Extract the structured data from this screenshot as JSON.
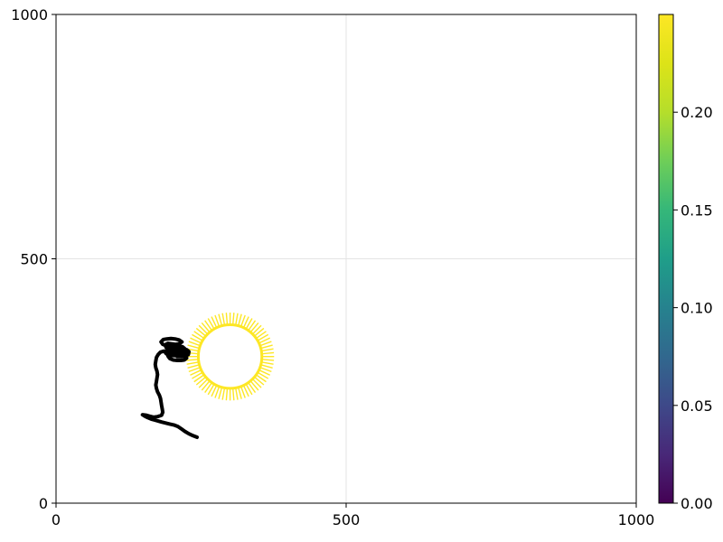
{
  "chart_data": {
    "type": "line",
    "title": "",
    "xlabel": "",
    "ylabel": "",
    "xlim": [
      0,
      1000
    ],
    "ylim": [
      0,
      1000
    ],
    "x_ticks": [
      "0",
      "500",
      "1000"
    ],
    "y_ticks": [
      "0",
      "500",
      "1000"
    ],
    "x_tick_values": [
      0,
      500,
      1000
    ],
    "y_tick_values": [
      0,
      500,
      1000
    ],
    "grid": true,
    "series": [
      {
        "kind": "trajectory",
        "color": "#000000",
        "points": [
          [
            243,
            135
          ],
          [
            236,
            138
          ],
          [
            229,
            142
          ],
          [
            222,
            147
          ],
          [
            216,
            152
          ],
          [
            210,
            157
          ],
          [
            203,
            160
          ],
          [
            196,
            162
          ],
          [
            189,
            164
          ],
          [
            182,
            166
          ],
          [
            176,
            168
          ],
          [
            170,
            170
          ],
          [
            164,
            172
          ],
          [
            158,
            175
          ],
          [
            153,
            178
          ],
          [
            149,
            181
          ],
          [
            155,
            180
          ],
          [
            161,
            178
          ],
          [
            168,
            176
          ],
          [
            175,
            177
          ],
          [
            182,
            180
          ],
          [
            184,
            186
          ],
          [
            183,
            193
          ],
          [
            182,
            200
          ],
          [
            181,
            207
          ],
          [
            180,
            214
          ],
          [
            178,
            221
          ],
          [
            175,
            228
          ],
          [
            173,
            235
          ],
          [
            172,
            242
          ],
          [
            173,
            249
          ],
          [
            174,
            256
          ],
          [
            175,
            263
          ],
          [
            174,
            270
          ],
          [
            172,
            277
          ],
          [
            171,
            284
          ],
          [
            172,
            291
          ],
          [
            173,
            298
          ],
          [
            176,
            304
          ],
          [
            180,
            309
          ],
          [
            186,
            311
          ],
          [
            192,
            310
          ],
          [
            198,
            309
          ],
          [
            205,
            308
          ],
          [
            211,
            308
          ],
          [
            216,
            310
          ],
          [
            214,
            315
          ],
          [
            208,
            317
          ],
          [
            201,
            317
          ],
          [
            195,
            316
          ],
          [
            190,
            318
          ],
          [
            188,
            324
          ],
          [
            193,
            327
          ],
          [
            199,
            326
          ],
          [
            206,
            325
          ],
          [
            212,
            326
          ],
          [
            217,
            330
          ],
          [
            212,
            334
          ],
          [
            205,
            336
          ],
          [
            198,
            337
          ],
          [
            191,
            336
          ],
          [
            185,
            335
          ],
          [
            181,
            330
          ],
          [
            184,
            325
          ],
          [
            190,
            322
          ],
          [
            196,
            321
          ],
          [
            203,
            321
          ],
          [
            210,
            321
          ],
          [
            215,
            319
          ],
          [
            214,
            314
          ],
          [
            209,
            313
          ],
          [
            203,
            313
          ],
          [
            197,
            313
          ],
          [
            191,
            312
          ],
          [
            189,
            307
          ],
          [
            193,
            303
          ],
          [
            200,
            302
          ],
          [
            207,
            302
          ],
          [
            214,
            302
          ],
          [
            220,
            303
          ],
          [
            224,
            307
          ],
          [
            221,
            312
          ],
          [
            215,
            313
          ],
          [
            209,
            313
          ],
          [
            204,
            315
          ],
          [
            206,
            320
          ],
          [
            212,
            322
          ],
          [
            218,
            320
          ],
          [
            222,
            316
          ],
          [
            223,
            310
          ],
          [
            220,
            305
          ],
          [
            214,
            302
          ],
          [
            208,
            302
          ],
          [
            202,
            303
          ],
          [
            197,
            304
          ],
          [
            193,
            301
          ],
          [
            196,
            296
          ],
          [
            202,
            293
          ],
          [
            209,
            292
          ],
          [
            215,
            292
          ],
          [
            221,
            293
          ],
          [
            225,
            297
          ],
          [
            222,
            302
          ],
          [
            216,
            304
          ],
          [
            210,
            305
          ],
          [
            205,
            308
          ],
          [
            206,
            313
          ],
          [
            212,
            315
          ],
          [
            219,
            315
          ],
          [
            225,
            314
          ],
          [
            229,
            310
          ],
          [
            228,
            304
          ],
          [
            222,
            301
          ],
          [
            215,
            300
          ],
          [
            209,
            300
          ]
        ]
      }
    ],
    "vector_field": {
      "center": [
        300,
        300
      ],
      "radius_inner": 65,
      "radius_outer": 90,
      "count": 72,
      "value": 0.25,
      "color": "#fde725"
    },
    "colorbar": {
      "colormap": "viridis",
      "range": [
        0.0,
        0.25
      ],
      "ticks": [
        "0.00",
        "0.05",
        "0.10",
        "0.15",
        "0.20"
      ],
      "tick_values": [
        0.0,
        0.05,
        0.1,
        0.15,
        0.2
      ]
    }
  }
}
